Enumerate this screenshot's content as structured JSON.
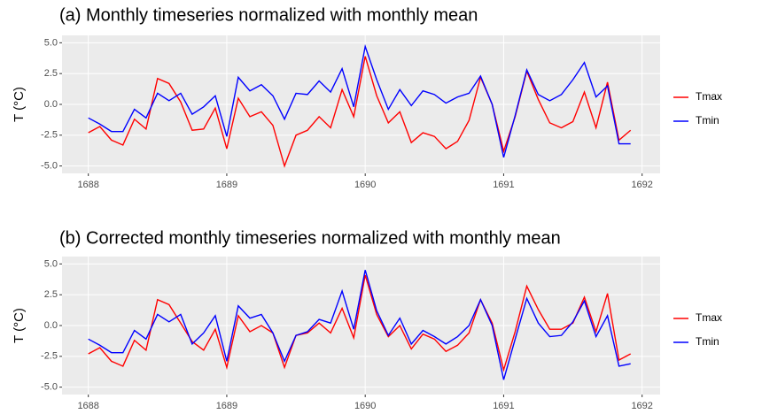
{
  "chart_data": [
    {
      "type": "line",
      "title": "(a) Monthly timeseries normalized with monthly mean",
      "y_label": "T (°C)",
      "x": [
        1688,
        1688.083,
        1688.167,
        1688.25,
        1688.333,
        1688.417,
        1688.5,
        1688.583,
        1688.667,
        1688.75,
        1688.833,
        1688.917,
        1689,
        1689.083,
        1689.167,
        1689.25,
        1689.333,
        1689.417,
        1689.5,
        1689.583,
        1689.667,
        1689.75,
        1689.833,
        1689.917,
        1690,
        1690.083,
        1690.167,
        1690.25,
        1690.333,
        1690.417,
        1690.5,
        1690.583,
        1690.667,
        1690.75,
        1690.833,
        1690.917,
        1691,
        1691.083,
        1691.167,
        1691.25,
        1691.333,
        1691.417,
        1691.5,
        1691.583,
        1691.667,
        1691.75,
        1691.833,
        1691.917
      ],
      "series": [
        {
          "name": "Tmax",
          "color": "#ff0000",
          "values": [
            -2.3,
            -1.8,
            -2.9,
            -3.3,
            -1.2,
            -2.0,
            2.1,
            1.7,
            0.2,
            -2.1,
            -2.0,
            -0.3,
            -3.6,
            0.5,
            -1.0,
            -0.6,
            -1.7,
            -5.0,
            -2.5,
            -2.1,
            -1.0,
            -1.9,
            1.2,
            -1.0,
            3.9,
            0.7,
            -1.5,
            -0.6,
            -3.1,
            -2.3,
            -2.6,
            -3.6,
            -3.0,
            -1.3,
            2.2,
            0.0,
            -3.8,
            -1.0,
            2.7,
            0.4,
            -1.5,
            -1.9,
            -1.4,
            1.0,
            -1.9,
            1.8,
            -2.9,
            -2.1
          ]
        },
        {
          "name": "Tmin",
          "color": "#0000ff",
          "values": [
            -1.1,
            -1.6,
            -2.2,
            -2.2,
            -0.4,
            -1.1,
            0.9,
            0.3,
            0.9,
            -0.8,
            -0.2,
            0.7,
            -2.6,
            2.2,
            1.1,
            1.6,
            0.7,
            -1.2,
            0.9,
            0.8,
            1.9,
            1.0,
            2.9,
            -0.2,
            4.7,
            2.0,
            -0.4,
            1.2,
            -0.1,
            1.1,
            0.8,
            0.1,
            0.6,
            0.9,
            2.3,
            0.0,
            -4.3,
            -0.9,
            2.8,
            0.8,
            0.3,
            0.8,
            2.0,
            3.4,
            0.6,
            1.5,
            -3.2,
            -3.2
          ]
        }
      ],
      "xlim": [
        1687.81,
        1692.13
      ],
      "xticks": [
        1688,
        1689,
        1690,
        1691,
        1692
      ],
      "ylim": [
        -5.6,
        5.6
      ],
      "yticks": [
        {
          "value": -5,
          "label": "-5.0"
        },
        {
          "value": -2.5,
          "label": "-2.5"
        },
        {
          "value": 0,
          "label": "0.0"
        },
        {
          "value": 2.5,
          "label": "2.5"
        },
        {
          "value": 5,
          "label": "5.0"
        }
      ],
      "grid": true,
      "legend": "right"
    },
    {
      "type": "line",
      "title": "(b) Corrected monthly timeseries normalized with monthly mean",
      "y_label": "T (°C)",
      "x": [
        1688,
        1688.083,
        1688.167,
        1688.25,
        1688.333,
        1688.417,
        1688.5,
        1688.583,
        1688.667,
        1688.75,
        1688.833,
        1688.917,
        1689,
        1689.083,
        1689.167,
        1689.25,
        1689.333,
        1689.417,
        1689.5,
        1689.583,
        1689.667,
        1689.75,
        1689.833,
        1689.917,
        1690,
        1690.083,
        1690.167,
        1690.25,
        1690.333,
        1690.417,
        1690.5,
        1690.583,
        1690.667,
        1690.75,
        1690.833,
        1690.917,
        1691,
        1691.083,
        1691.167,
        1691.25,
        1691.333,
        1691.417,
        1691.5,
        1691.583,
        1691.667,
        1691.75,
        1691.833,
        1691.917
      ],
      "series": [
        {
          "name": "Tmax",
          "color": "#ff0000",
          "values": [
            -2.3,
            -1.8,
            -2.9,
            -3.3,
            -1.2,
            -2.0,
            2.1,
            1.7,
            0.2,
            -1.3,
            -2.0,
            -0.3,
            -3.4,
            0.8,
            -0.5,
            0.0,
            -0.6,
            -3.4,
            -0.8,
            -0.6,
            0.2,
            -0.6,
            1.4,
            -1.0,
            4.1,
            0.9,
            -0.9,
            0.0,
            -1.9,
            -0.7,
            -1.1,
            -2.1,
            -1.6,
            -0.6,
            2.1,
            0.2,
            -3.6,
            -0.5,
            3.2,
            1.3,
            -0.3,
            -0.3,
            0.2,
            2.3,
            -0.5,
            2.6,
            -2.8,
            -2.3
          ]
        },
        {
          "name": "Tmin",
          "color": "#0000ff",
          "values": [
            -1.1,
            -1.6,
            -2.2,
            -2.2,
            -0.4,
            -1.1,
            0.9,
            0.3,
            0.9,
            -1.5,
            -0.6,
            0.8,
            -2.9,
            1.6,
            0.6,
            0.9,
            -0.6,
            -2.9,
            -0.8,
            -0.5,
            0.5,
            0.2,
            2.8,
            -0.3,
            4.5,
            1.2,
            -0.8,
            0.6,
            -1.5,
            -0.4,
            -0.9,
            -1.5,
            -0.9,
            0.0,
            2.1,
            0.0,
            -4.4,
            -1.1,
            2.2,
            0.2,
            -0.9,
            -0.8,
            0.3,
            2.0,
            -0.9,
            0.8,
            -3.3,
            -3.1
          ]
        }
      ],
      "xlim": [
        1687.81,
        1692.13
      ],
      "xticks": [
        1688,
        1689,
        1690,
        1691,
        1692
      ],
      "ylim": [
        -5.6,
        5.6
      ],
      "yticks": [
        {
          "value": -5,
          "label": "-5.0"
        },
        {
          "value": -2.5,
          "label": "-2.5"
        },
        {
          "value": 0,
          "label": "0.0"
        },
        {
          "value": 2.5,
          "label": "2.5"
        },
        {
          "value": 5,
          "label": "5.0"
        }
      ],
      "grid": true,
      "legend": "right"
    }
  ]
}
